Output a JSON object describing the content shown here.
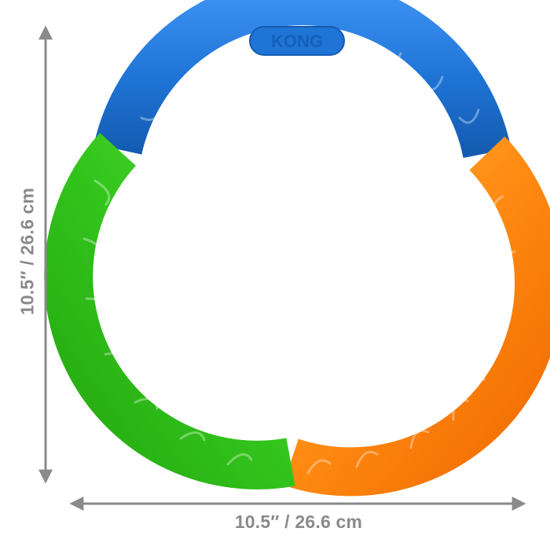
{
  "dimensions": {
    "width_label": "10.5″ / 26.6 cm",
    "height_label": "10.5″ / 26.6 cm"
  },
  "product": {
    "logo_text": "KONG",
    "segments": [
      {
        "name": "blue",
        "color": "#1f74d6"
      },
      {
        "name": "orange",
        "color": "#ff8a12"
      },
      {
        "name": "green",
        "color": "#33c51c"
      }
    ]
  },
  "colors": {
    "dimension_gray": "#8a8a8a",
    "background": "#ffffff"
  }
}
